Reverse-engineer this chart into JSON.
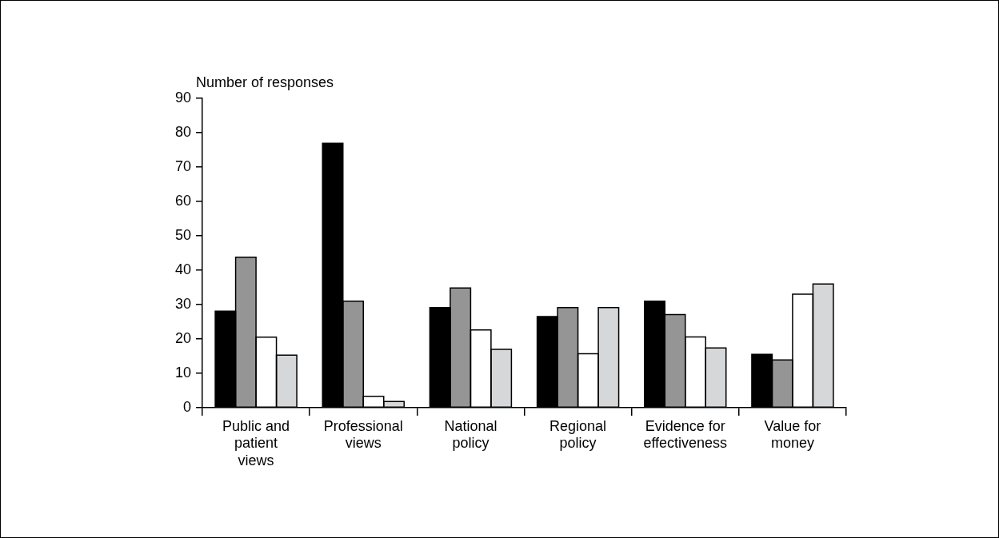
{
  "chart_data": {
    "type": "bar",
    "ylabel": "Number of responses",
    "categories": [
      "Public and patient views",
      "Professional views",
      "National policy",
      "Regional policy",
      "Evidence for effectiveness",
      "Value for money"
    ],
    "series": [
      {
        "color": "#000000",
        "values": [
          28.1,
          76.9,
          29.1,
          26.5,
          31,
          15.5
        ]
      },
      {
        "color": "#959595",
        "values": [
          43.8,
          31,
          34.8,
          29.1,
          27.1,
          13.9
        ]
      },
      {
        "color": "#ffffff",
        "values": [
          20.5,
          3.3,
          22.6,
          15.7,
          20.6,
          33
        ]
      },
      {
        "color": "#d6d7d9",
        "values": [
          15.3,
          1.8,
          17,
          29.1,
          17.4,
          36
        ]
      }
    ],
    "ylim": [
      0,
      90
    ],
    "yticks": [
      0,
      10,
      20,
      30,
      40,
      50,
      60,
      70,
      80,
      90
    ],
    "grid": false,
    "legend": false
  }
}
